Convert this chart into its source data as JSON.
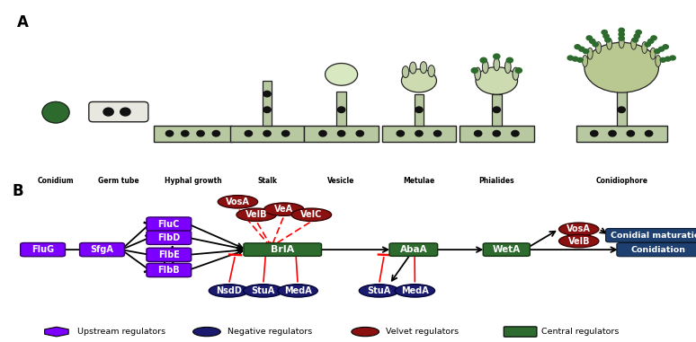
{
  "purple": "#7B00FF",
  "dark_blue": "#1a1a6e",
  "dark_red": "#8B1010",
  "green": "#2E6B2E",
  "teal": "#1e4070",
  "bg": "#FFFFFF",
  "mycelium": "#b8c8a0",
  "mycelium_dark": "#8a9870",
  "outline": "#222222",
  "dot": "#111111",
  "dark_green_spore": "#2D6A2D",
  "panel_A_labels": [
    "Conidium",
    "Germ tube",
    "Hyphal growth",
    "Stalk",
    "Vesicle",
    "Metulae",
    "Phialides",
    "Conidiophore"
  ],
  "legend_labels": [
    "Upstream regulators",
    "Negative regulators",
    "Velvet regulators",
    "Central regulators"
  ]
}
